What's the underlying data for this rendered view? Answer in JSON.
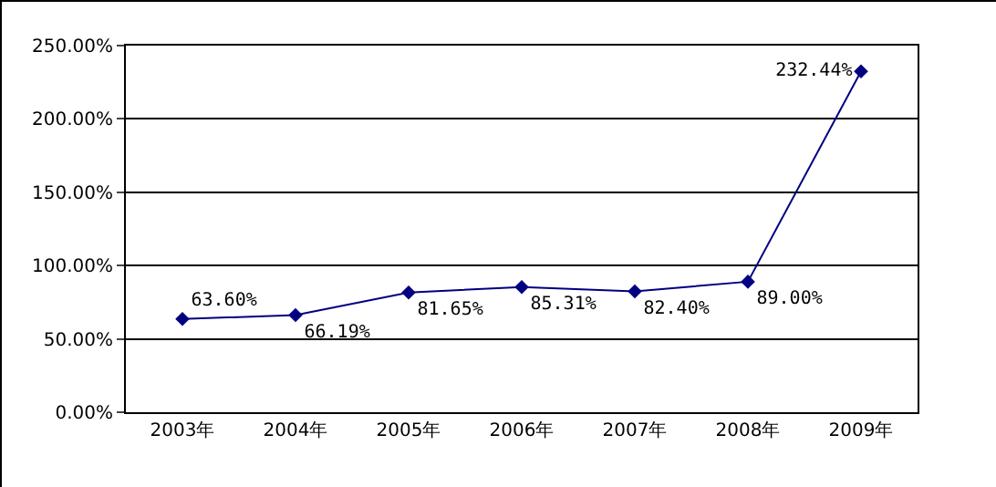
{
  "chart_data": {
    "type": "line",
    "categories": [
      "2003年",
      "2004年",
      "2005年",
      "2006年",
      "2007年",
      "2008年",
      "2009年"
    ],
    "values": [
      63.6,
      66.19,
      81.65,
      85.31,
      82.4,
      89.0,
      232.44
    ],
    "value_labels": [
      "63.60%",
      "66.19%",
      "81.65%",
      "85.31%",
      "82.40%",
      "89.00%",
      "232.44%"
    ],
    "color": "#000080",
    "marker": "diamond",
    "line_style": "solid",
    "grid": "y",
    "legend": false,
    "ylim": [
      0,
      250
    ],
    "yticks": [
      {
        "value": 0,
        "label": "0.00%"
      },
      {
        "value": 50,
        "label": "50.00%"
      },
      {
        "value": 100,
        "label": "100.00%"
      },
      {
        "value": 150,
        "label": "150.00%"
      },
      {
        "value": 200,
        "label": "200.00%"
      },
      {
        "value": 250,
        "label": "250.00%"
      }
    ]
  }
}
